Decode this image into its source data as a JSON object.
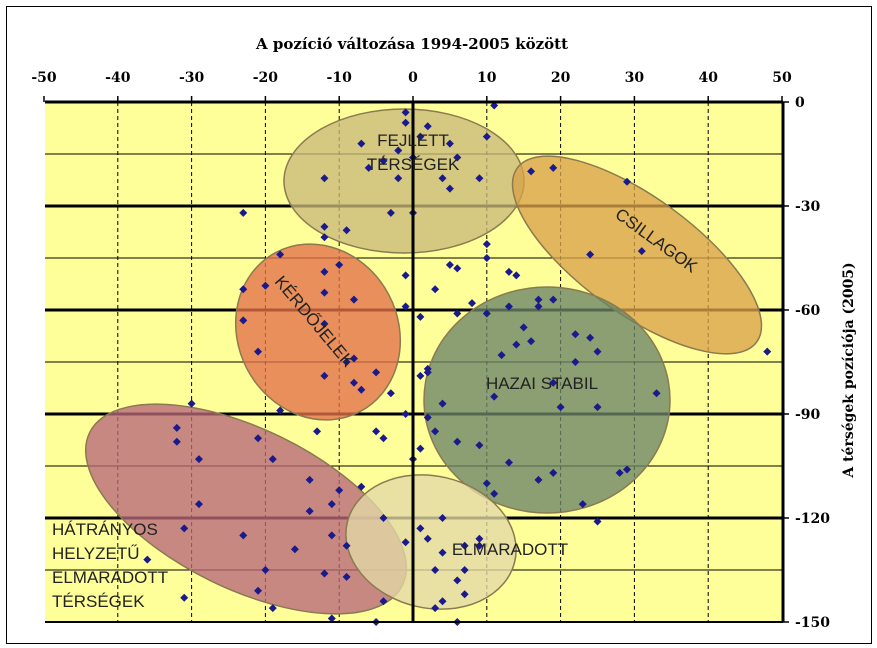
{
  "chart_data": {
    "type": "scatter",
    "title": "A pozíció változása 1994-2005 között",
    "ylabel": "A térségek pozíciója (2005)",
    "x_ticks": [
      "-50",
      "-40",
      "-30",
      "-20",
      "-10",
      "0",
      "10",
      "20",
      "30",
      "40",
      "50"
    ],
    "y_ticks": [
      "0",
      "-30",
      "-60",
      "-90",
      "-120",
      "-150"
    ],
    "xlim": [
      -50,
      50
    ],
    "ylim": [
      -150,
      0
    ],
    "grid": true,
    "background_color": "#ffff99",
    "point_color": "#1a1a8c",
    "clusters": [
      {
        "label_lines": [
          "FEJLETT",
          "TÉRSÉGEK"
        ],
        "color": "#c9b97a"
      },
      {
        "label_lines": [
          "CSILLAGOK"
        ],
        "color": "#d9a24a"
      },
      {
        "label_lines": [
          "KÉRDŐJELEK"
        ],
        "color": "#e3704a"
      },
      {
        "label_lines": [
          "HAZAI STABIL"
        ],
        "color": "#6a8468"
      },
      {
        "label_lines": [
          "HÁTRÁNYOS",
          "HELYZETŰ",
          "ELMARADOTT",
          "TÉRSÉGEK"
        ],
        "color": "#b7667a"
      },
      {
        "label_lines": [
          "ELMARADOTT"
        ],
        "color": "#e3d9a6"
      }
    ],
    "points": [
      [
        11,
        -1
      ],
      [
        -1,
        -3
      ],
      [
        -1,
        -6
      ],
      [
        2,
        -7
      ],
      [
        1,
        -10
      ],
      [
        10,
        -10
      ],
      [
        -7,
        -12
      ],
      [
        5,
        -12
      ],
      [
        -2,
        -14
      ],
      [
        0,
        -16
      ],
      [
        -4,
        -17
      ],
      [
        6,
        -16
      ],
      [
        -6,
        -19
      ],
      [
        -12,
        -22
      ],
      [
        -2,
        -22
      ],
      [
        9,
        -22
      ],
      [
        4,
        -22
      ],
      [
        5,
        -25
      ],
      [
        16,
        -20
      ],
      [
        19,
        -19
      ],
      [
        29,
        -23
      ],
      [
        -23,
        -32
      ],
      [
        -12,
        -36
      ],
      [
        -3,
        -32
      ],
      [
        0,
        -32
      ],
      [
        -9,
        -37
      ],
      [
        -12,
        -39
      ],
      [
        10,
        -41
      ],
      [
        10,
        -45
      ],
      [
        13,
        -49
      ],
      [
        14,
        -50
      ],
      [
        5,
        -47
      ],
      [
        6,
        -48
      ],
      [
        -1,
        -50
      ],
      [
        3,
        -54
      ],
      [
        8,
        -58
      ],
      [
        17,
        -59
      ],
      [
        24,
        -44
      ],
      [
        31,
        -43
      ],
      [
        48,
        -72
      ],
      [
        -18,
        -44
      ],
      [
        -10,
        -47
      ],
      [
        -12,
        -49
      ],
      [
        -23,
        -54
      ],
      [
        -20,
        -53
      ],
      [
        -12,
        -55
      ],
      [
        -8,
        -57
      ],
      [
        -1,
        -59
      ],
      [
        1,
        -62
      ],
      [
        -23,
        -63
      ],
      [
        -12,
        -64
      ],
      [
        -21,
        -72
      ],
      [
        -8,
        -74
      ],
      [
        -9,
        -75
      ],
      [
        -5,
        -78
      ],
      [
        -12,
        -79
      ],
      [
        -8,
        -81
      ],
      [
        -7,
        -83
      ],
      [
        -3,
        -84
      ],
      [
        1,
        -79
      ],
      [
        2,
        -77
      ],
      [
        -18,
        -89
      ],
      [
        -13,
        -95
      ],
      [
        -5,
        -95
      ],
      [
        -4,
        -97
      ],
      [
        -1,
        -90
      ],
      [
        2,
        -91
      ],
      [
        -30,
        -87
      ],
      [
        -32,
        -94
      ],
      [
        -32,
        -98
      ],
      [
        -21,
        -97
      ],
      [
        -29,
        -103
      ],
      [
        -19,
        -103
      ],
      [
        -14,
        -109
      ],
      [
        -10,
        -112
      ],
      [
        -11,
        -116
      ],
      [
        -7,
        -111
      ],
      [
        -29,
        -116
      ],
      [
        -14,
        -118
      ],
      [
        -4,
        -120
      ],
      [
        -31,
        -123
      ],
      [
        -23,
        -125
      ],
      [
        -11,
        -125
      ],
      [
        -16,
        -129
      ],
      [
        -9,
        -128
      ],
      [
        -36,
        -132
      ],
      [
        -20,
        -135
      ],
      [
        -12,
        -136
      ],
      [
        -9,
        -137
      ],
      [
        -21,
        -141
      ],
      [
        -31,
        -143
      ],
      [
        -19,
        -146
      ],
      [
        -11,
        -149
      ],
      [
        -5,
        -150
      ],
      [
        -4,
        -144
      ],
      [
        1,
        -123
      ],
      [
        4,
        -120
      ],
      [
        2,
        -126
      ],
      [
        -1,
        -127
      ],
      [
        4,
        -130
      ],
      [
        7,
        -128
      ],
      [
        9,
        -128
      ],
      [
        9,
        -126
      ],
      [
        3,
        -135
      ],
      [
        6,
        -138
      ],
      [
        7,
        -142
      ],
      [
        4,
        -144
      ],
      [
        3,
        -146
      ],
      [
        7,
        -135
      ],
      [
        6,
        -150
      ],
      [
        0,
        -103
      ],
      [
        1,
        -100
      ],
      [
        2,
        -78
      ],
      [
        6,
        -61
      ],
      [
        10,
        -61
      ],
      [
        13,
        -59
      ],
      [
        17,
        -57
      ],
      [
        19,
        -57
      ],
      [
        15,
        -65
      ],
      [
        16,
        -69
      ],
      [
        14,
        -70
      ],
      [
        12,
        -73
      ],
      [
        22,
        -67
      ],
      [
        24,
        -68
      ],
      [
        25,
        -72
      ],
      [
        22,
        -75
      ],
      [
        19,
        -81
      ],
      [
        33,
        -84
      ],
      [
        25,
        -88
      ],
      [
        11,
        -85
      ],
      [
        4,
        -87
      ],
      [
        3,
        -95
      ],
      [
        6,
        -98
      ],
      [
        9,
        -99
      ],
      [
        10,
        -110
      ],
      [
        11,
        -113
      ],
      [
        13,
        -104
      ],
      [
        19,
        -107
      ],
      [
        17,
        -109
      ],
      [
        28,
        -107
      ],
      [
        29,
        -106
      ],
      [
        23,
        -116
      ],
      [
        25,
        -121
      ],
      [
        20,
        -88
      ]
    ]
  }
}
